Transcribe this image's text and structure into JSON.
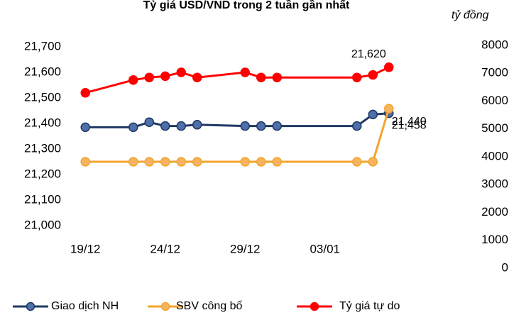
{
  "chart_data": [
    {
      "type": "line",
      "title": "Tỷ giá USD/VND  trong 2 tuần gần nhất",
      "x": [
        0,
        3,
        4,
        5,
        6,
        7,
        10,
        11,
        12,
        17,
        18,
        19
      ],
      "xlim": [
        -0.5,
        19.5
      ],
      "xticks": [
        {
          "value": 0,
          "label": "19/12"
        },
        {
          "value": 5,
          "label": "24/12"
        },
        {
          "value": 10,
          "label": "29/12"
        },
        {
          "value": 15,
          "label": "03/01"
        }
      ],
      "ylim": [
        21000,
        21700
      ],
      "yticks": [
        {
          "value": 21000,
          "label": "21,000"
        },
        {
          "value": 21100,
          "label": "21,100"
        },
        {
          "value": 21200,
          "label": "21,200"
        },
        {
          "value": 21300,
          "label": "21,300"
        },
        {
          "value": 21400,
          "label": "21,400"
        },
        {
          "value": 21500,
          "label": "21,500"
        },
        {
          "value": 21600,
          "label": "21,600"
        },
        {
          "value": 21700,
          "label": "21,700"
        }
      ],
      "legend": "bottom",
      "series": [
        {
          "name": "Giao dịch NH",
          "color": "#1f3864",
          "marker_color": "#4f6fa8",
          "values": [
            21385,
            21385,
            21405,
            21390,
            21390,
            21395,
            21390,
            21390,
            21390,
            21390,
            21435,
            21440
          ],
          "value_labels": [
            null,
            null,
            null,
            null,
            null,
            null,
            null,
            null,
            null,
            null,
            null,
            "21,440"
          ]
        },
        {
          "name": "SBV công bố",
          "color": "#f4a42c",
          "marker_color": "#f7b460",
          "values": [
            21250,
            21250,
            21250,
            21250,
            21250,
            21250,
            21250,
            21250,
            21250,
            21250,
            21250,
            21458
          ],
          "value_labels": [
            null,
            null,
            null,
            null,
            null,
            null,
            null,
            null,
            null,
            null,
            null,
            "21,458"
          ]
        },
        {
          "name": "Tỷ giá tự do",
          "color": "#ff0000",
          "marker_color": "#ff0000",
          "values": [
            21520,
            21570,
            21580,
            21585,
            21600,
            21580,
            21600,
            21580,
            21580,
            21580,
            21590,
            21620
          ],
          "value_labels": [
            null,
            null,
            null,
            null,
            null,
            null,
            null,
            null,
            null,
            null,
            null,
            "21,620"
          ]
        }
      ]
    },
    {
      "type": "bar",
      "ylabel": "tỷ đồng",
      "ylim": [
        0,
        8000
      ],
      "yticks": [
        0,
        1000,
        2000,
        3000,
        4000,
        5000,
        6000,
        7000,
        8000
      ]
    }
  ]
}
